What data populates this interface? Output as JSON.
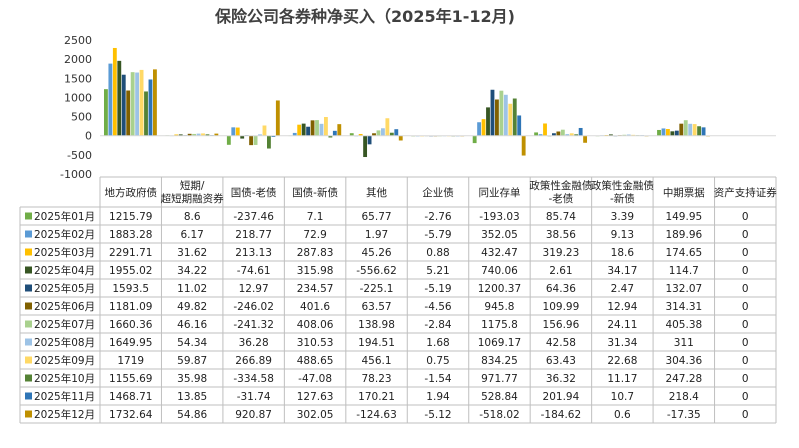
{
  "chart_data": {
    "type": "bar",
    "title": "保险公司各券种净买入（2025年1-12月)",
    "categories": [
      "地方政府债",
      "短期/超短期融资券",
      "国债-老债",
      "国债-新债",
      "其他",
      "企业债",
      "同业存单",
      "政策性金融债-老债",
      "政策性金融债-新债",
      "中期票据",
      "资产支持证券"
    ],
    "ylim": [
      -1000,
      2500
    ],
    "yticks": [
      2500,
      2000,
      1500,
      1000,
      500,
      0,
      -500,
      -1000
    ],
    "grid": false,
    "legend": "table-left",
    "series": [
      {
        "name": "2025年01月",
        "color": "#70AD47",
        "values": [
          "1215.79",
          "8.6",
          "-237.46",
          "7.1",
          "65.77",
          "-2.76",
          "-193.03",
          "85.74",
          "3.39",
          "149.95",
          "0"
        ]
      },
      {
        "name": "2025年02月",
        "color": "#5B9BD5",
        "values": [
          "1883.28",
          "6.17",
          "218.77",
          "72.9",
          "1.97",
          "-5.79",
          "352.05",
          "38.56",
          "9.13",
          "189.96",
          "0"
        ]
      },
      {
        "name": "2025年03月",
        "color": "#FFC000",
        "values": [
          "2291.71",
          "31.62",
          "213.13",
          "287.83",
          "45.26",
          "0.88",
          "432.47",
          "319.23",
          "18.6",
          "174.65",
          "0"
        ]
      },
      {
        "name": "2025年04月",
        "color": "#375623",
        "values": [
          "1955.02",
          "34.22",
          "-74.61",
          "315.98",
          "-556.62",
          "5.21",
          "740.06",
          "2.61",
          "34.17",
          "114.7",
          "0"
        ]
      },
      {
        "name": "2025年05月",
        "color": "#1F4E79",
        "values": [
          "1593.5",
          "11.02",
          "12.97",
          "234.57",
          "-225.1",
          "-5.19",
          "1200.37",
          "64.36",
          "2.47",
          "132.07",
          "0"
        ]
      },
      {
        "name": "2025年06月",
        "color": "#806000",
        "values": [
          "1181.09",
          "49.82",
          "-246.02",
          "401.6",
          "63.57",
          "-4.56",
          "945.8",
          "109.99",
          "12.94",
          "314.31",
          "0"
        ]
      },
      {
        "name": "2025年07月",
        "color": "#A9D18E",
        "values": [
          "1660.36",
          "46.16",
          "-241.32",
          "408.06",
          "138.98",
          "-2.84",
          "1175.8",
          "156.96",
          "24.11",
          "405.38",
          "0"
        ]
      },
      {
        "name": "2025年08月",
        "color": "#9DC3E6",
        "values": [
          "1649.95",
          "54.34",
          "36.28",
          "310.53",
          "194.51",
          "1.68",
          "1069.17",
          "42.58",
          "31.34",
          "311",
          "0"
        ]
      },
      {
        "name": "2025年09月",
        "color": "#FFD966",
        "values": [
          "1719",
          "59.87",
          "266.89",
          "488.65",
          "456.1",
          "0.75",
          "834.25",
          "63.43",
          "22.68",
          "304.36",
          "0"
        ]
      },
      {
        "name": "2025年10月",
        "color": "#548235",
        "values": [
          "1155.69",
          "35.98",
          "-334.58",
          "-47.08",
          "78.23",
          "-1.54",
          "971.77",
          "36.32",
          "11.17",
          "247.28",
          "0"
        ]
      },
      {
        "name": "2025年11月",
        "color": "#2E75B6",
        "values": [
          "1468.71",
          "13.85",
          "-31.74",
          "127.63",
          "170.21",
          "1.94",
          "528.84",
          "201.94",
          "10.7",
          "218.4",
          "0"
        ]
      },
      {
        "name": "2025年12月",
        "color": "#BF9000",
        "values": [
          "1732.64",
          "54.86",
          "920.87",
          "302.05",
          "-124.63",
          "-5.12",
          "-518.02",
          "-184.62",
          "0.6",
          "-17.35",
          "0"
        ]
      }
    ]
  }
}
